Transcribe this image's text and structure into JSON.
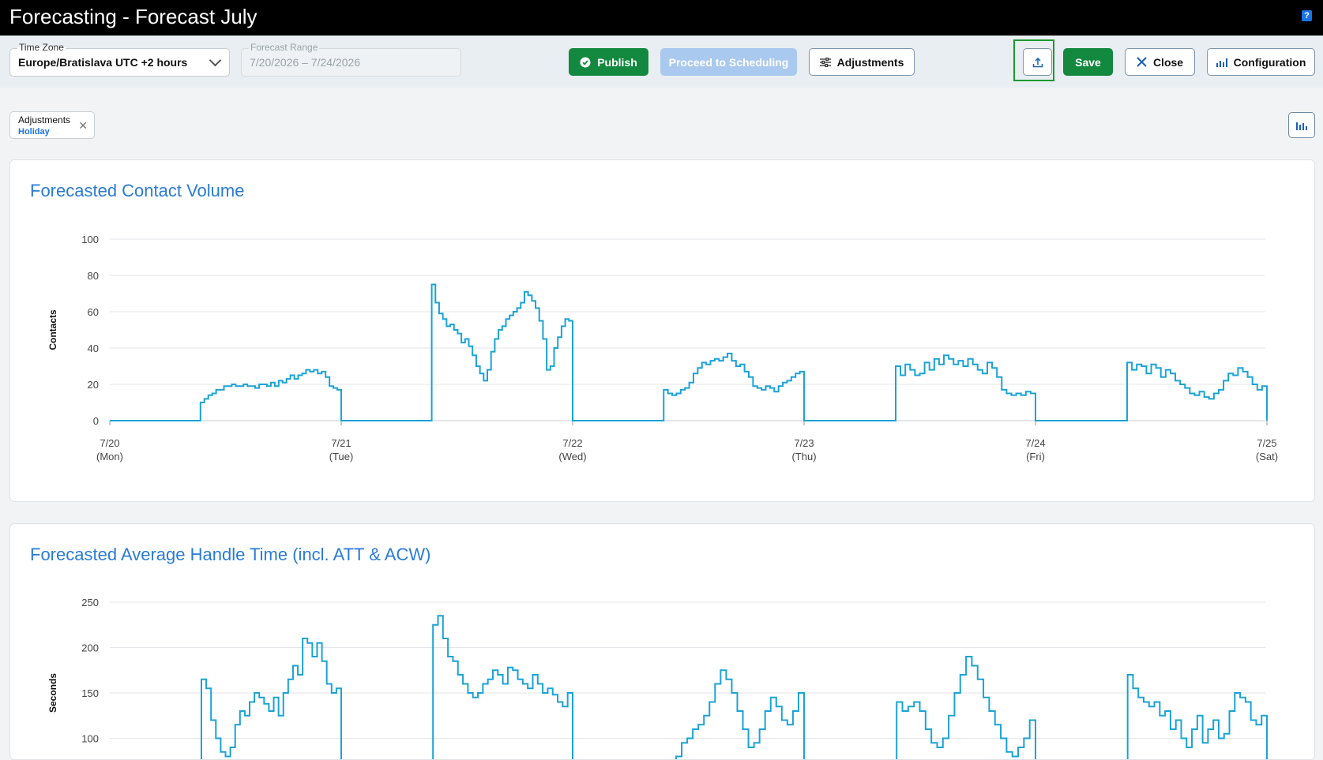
{
  "window": {
    "title": "Forecasting - Forecast July",
    "help_icon": "help-icon"
  },
  "toolbar": {
    "timezone": {
      "label": "Time Zone",
      "value": "Europe/Bratislava UTC +2 hours"
    },
    "range": {
      "label": "Forecast Range",
      "value": "7/20/2026 – 7/24/2026"
    },
    "publish": "Publish",
    "proceed": "Proceed to Scheduling",
    "adjustments": "Adjustments",
    "save": "Save",
    "close": "Close",
    "configuration": "Configuration"
  },
  "filter_chip": {
    "title": "Adjustments",
    "value": "Holiday"
  },
  "colors": {
    "line": "#1aa3d6",
    "title": "#2a7bd6",
    "green": "#13883f"
  },
  "chart_data": [
    {
      "type": "line",
      "title": "Forecasted Contact Volume",
      "ylabel": "Contacts",
      "ylim": [
        0,
        100
      ],
      "yticks": [
        0,
        20,
        40,
        60,
        80,
        100
      ],
      "xticks": [
        {
          "day": 0,
          "date": "7/20",
          "dow": "(Mon)"
        },
        {
          "day": 1,
          "date": "7/21",
          "dow": "(Tue)"
        },
        {
          "day": 2,
          "date": "7/22",
          "dow": "(Wed)"
        },
        {
          "day": 3,
          "date": "7/23",
          "dow": "(Thu)"
        },
        {
          "day": 4,
          "date": "7/24",
          "dow": "(Fri)"
        },
        {
          "day": 5,
          "date": "7/25",
          "dow": "(Sat)"
        }
      ],
      "series": [
        {
          "segments": [
            {
              "start": 0.375,
              "values": [
                0,
                10,
                12,
                14,
                15,
                17,
                17,
                19,
                19,
                20,
                19,
                19,
                20,
                19,
                19,
                18,
                20,
                20,
                19,
                21,
                19,
                22,
                21,
                23,
                25,
                23,
                25,
                26,
                28,
                27,
                28,
                26,
                27,
                24,
                19,
                18,
                17,
                0
              ]
            },
            {
              "start": 1.375,
              "values": [
                0,
                75,
                65,
                59,
                56,
                52,
                53,
                50,
                48,
                43,
                45,
                41,
                36,
                30,
                26,
                22,
                28,
                38,
                45,
                50,
                52,
                56,
                58,
                60,
                62,
                65,
                71,
                69,
                66,
                62,
                55,
                45,
                28,
                30,
                40,
                46,
                52,
                56,
                55,
                0
              ]
            },
            {
              "start": 2.375,
              "values": [
                0,
                17,
                15,
                14,
                15,
                17,
                18,
                21,
                26,
                29,
                32,
                31,
                33,
                34,
                33,
                35,
                37,
                33,
                30,
                31,
                27,
                24,
                19,
                18,
                17,
                19,
                18,
                16,
                19,
                21,
                22,
                24,
                26,
                27,
                0
              ]
            },
            {
              "start": 3.375,
              "values": [
                0,
                30,
                25,
                31,
                28,
                25,
                26,
                32,
                28,
                34,
                31,
                36,
                34,
                31,
                33,
                30,
                34,
                31,
                28,
                26,
                32,
                29,
                24,
                17,
                15,
                14,
                15,
                14,
                16,
                15,
                0
              ]
            },
            {
              "start": 4.375,
              "values": [
                0,
                32,
                28,
                31,
                30,
                26,
                31,
                29,
                24,
                28,
                26,
                22,
                20,
                18,
                15,
                14,
                16,
                13,
                12,
                15,
                17,
                22,
                26,
                25,
                29,
                27,
                24,
                20,
                17,
                19,
                0
              ]
            }
          ]
        }
      ]
    },
    {
      "type": "line",
      "title": "Forecasted Average Handle Time (incl. ATT & ACW)",
      "ylabel": "Seconds",
      "ylim": [
        50,
        250
      ],
      "yticks": [
        100,
        150,
        200,
        250
      ],
      "series": [
        {
          "segments": [
            {
              "start": 0.375,
              "values": [
                0,
                165,
                155,
                120,
                100,
                85,
                80,
                90,
                115,
                130,
                125,
                140,
                150,
                145,
                138,
                130,
                145,
                125,
                150,
                165,
                180,
                170,
                210,
                205,
                190,
                205,
                185,
                160,
                150,
                155,
                0
              ]
            },
            {
              "start": 1.375,
              "values": [
                0,
                225,
                235,
                210,
                190,
                185,
                170,
                160,
                150,
                145,
                150,
                160,
                165,
                175,
                170,
                160,
                178,
                175,
                165,
                160,
                155,
                170,
                160,
                150,
                155,
                148,
                140,
                135,
                150,
                0
              ]
            },
            {
              "start": 2.375,
              "values": [
                0,
                60,
                70,
                80,
                95,
                100,
                110,
                115,
                125,
                140,
                160,
                175,
                165,
                150,
                130,
                110,
                90,
                95,
                110,
                130,
                145,
                135,
                120,
                115,
                130,
                150,
                0
              ]
            },
            {
              "start": 3.375,
              "values": [
                0,
                140,
                130,
                135,
                140,
                130,
                110,
                95,
                90,
                100,
                125,
                150,
                170,
                190,
                180,
                165,
                145,
                130,
                115,
                100,
                85,
                80,
                90,
                100,
                120,
                0
              ]
            },
            {
              "start": 4.375,
              "values": [
                0,
                170,
                155,
                145,
                140,
                135,
                140,
                125,
                130,
                110,
                120,
                100,
                90,
                110,
                125,
                95,
                110,
                120,
                100,
                105,
                130,
                150,
                145,
                140,
                120,
                115,
                125,
                0
              ]
            }
          ]
        }
      ]
    }
  ]
}
